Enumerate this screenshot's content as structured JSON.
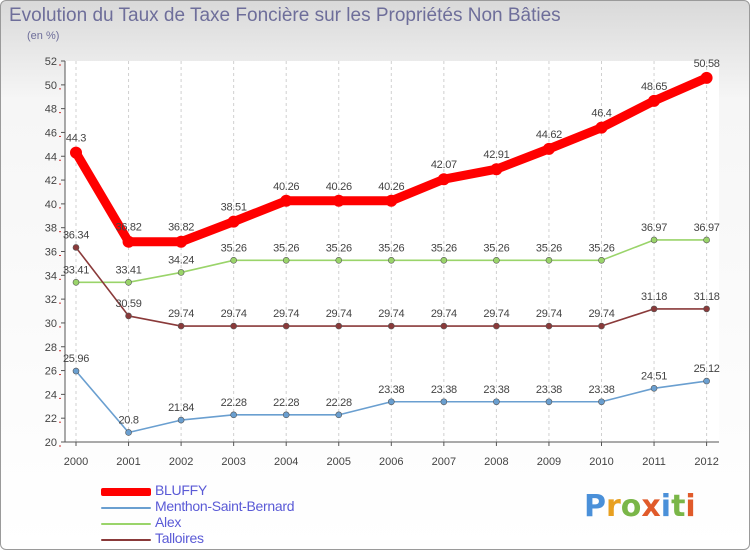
{
  "title": "Evolution du Taux de Taxe Foncière sur les Propriétés Non Bâties",
  "unit_label": "(en %)",
  "logo": {
    "text": "Proxiti",
    "letter_colors": [
      "#4a90d9",
      "#e8a020",
      "#7ab648",
      "#e05a2a",
      "#4a90d9",
      "#7ab648",
      "#e05a2a"
    ]
  },
  "chart_data": {
    "type": "line",
    "title": "Evolution du Taux de Taxe Foncière sur les Propriétés Non Bâties",
    "ylabel": "(en %)",
    "xlabel": "",
    "x": [
      "2000",
      "2001",
      "2002",
      "2003",
      "2004",
      "2005",
      "2006",
      "2007",
      "2008",
      "2009",
      "2010",
      "2011",
      "2012"
    ],
    "ylim": [
      20,
      52
    ],
    "yticks": [
      20,
      22,
      24,
      26,
      28,
      30,
      32,
      34,
      36,
      38,
      40,
      42,
      44,
      46,
      48,
      50,
      52
    ],
    "grid": "vertical-dashed",
    "legend_position": "bottom-left",
    "series": [
      {
        "name": "BLUFFY",
        "color": "#ff0000",
        "emphasis": true,
        "values": [
          44.3,
          36.82,
          36.82,
          38.51,
          40.26,
          40.26,
          40.26,
          42.07,
          42.91,
          44.62,
          46.4,
          48.65,
          50.58
        ],
        "labels": [
          "44.3",
          "36.82",
          "36.82",
          "38.51",
          "40.26",
          "40.26",
          "40.26",
          "42.07",
          "42.91",
          "44.62",
          "46.4",
          "48.65",
          "50.58"
        ]
      },
      {
        "name": "Menthon-Saint-Bernard",
        "color": "#6a9fd0",
        "emphasis": false,
        "values": [
          25.96,
          20.8,
          21.84,
          22.28,
          22.28,
          22.28,
          23.38,
          23.38,
          23.38,
          23.38,
          23.38,
          24.51,
          25.12
        ],
        "labels": [
          "25.96",
          "20.8",
          "21.84",
          "22.28",
          "22.28",
          "22.28",
          "23.38",
          "23.38",
          "23.38",
          "23.38",
          "23.38",
          "24.51",
          "25.12"
        ]
      },
      {
        "name": "Alex",
        "color": "#9ad46a",
        "emphasis": false,
        "values": [
          33.41,
          33.41,
          34.24,
          35.26,
          35.26,
          35.26,
          35.26,
          35.26,
          35.26,
          35.26,
          35.26,
          36.97,
          36.97
        ],
        "labels": [
          "33.41",
          "33.41",
          "34.24",
          "35.26",
          "35.26",
          "35.26",
          "35.26",
          "35.26",
          "35.26",
          "35.26",
          "35.26",
          "36.97",
          "36.97"
        ]
      },
      {
        "name": "Talloires",
        "color": "#8a3a3a",
        "emphasis": false,
        "values": [
          36.34,
          30.59,
          29.74,
          29.74,
          29.74,
          29.74,
          29.74,
          29.74,
          29.74,
          29.74,
          29.74,
          31.18,
          31.18
        ],
        "labels": [
          "36.34",
          "30.59",
          "29.74",
          "29.74",
          "29.74",
          "29.74",
          "29.74",
          "29.74",
          "29.74",
          "29.74",
          "29.74",
          "31.18",
          "31.18"
        ]
      }
    ]
  }
}
